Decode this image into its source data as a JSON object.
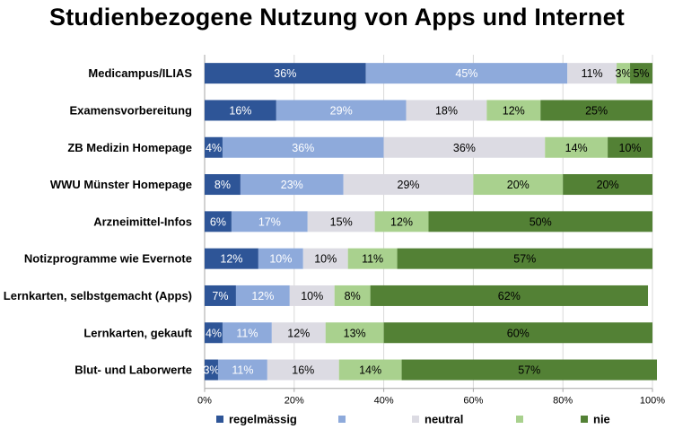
{
  "chart_data": {
    "type": "bar",
    "orientation": "horizontal",
    "stacked": true,
    "title": "Studienbezogene Nutzung von Apps und Internet",
    "xlim": [
      0,
      100
    ],
    "x_ticks": [
      "0%",
      "20%",
      "40%",
      "60%",
      "80%",
      "100%"
    ],
    "grid": true,
    "legend_position": "bottom",
    "categories": [
      "Medicampus/ILIAS",
      "Examensvorbereitung",
      "ZB Medizin Homepage",
      "WWU Münster Homepage",
      "Arzneimittel-Infos",
      "Notizprogramme wie Evernote",
      "Lernkarten, selbstgemacht (Apps)",
      "Lernkarten, gekauft",
      "Blut- und Laborwerte"
    ],
    "series": [
      {
        "name": "regelmässig",
        "color": "#2e5597",
        "label_color": "#ffffff",
        "values": [
          36,
          16,
          4,
          8,
          6,
          12,
          7,
          4,
          3
        ],
        "labels": [
          "36%",
          "16%",
          "4%",
          "8%",
          "6%",
          "12%",
          "7%",
          "4%",
          "3%"
        ]
      },
      {
        "name": "",
        "color": "#8eaadb",
        "label_color": "#ffffff",
        "values": [
          45,
          29,
          36,
          23,
          17,
          10,
          12,
          11,
          11
        ],
        "labels": [
          "45%",
          "29%",
          "36%",
          "23%",
          "17%",
          "10%",
          "12%",
          "11%",
          "11%"
        ]
      },
      {
        "name": "neutral",
        "color": "#dcdbe3",
        "label_color": "#000000",
        "values": [
          11,
          18,
          36,
          29,
          15,
          10,
          10,
          12,
          16
        ],
        "labels": [
          "11%",
          "18%",
          "36%",
          "29%",
          "15%",
          "10%",
          "10%",
          "12%",
          "16%"
        ]
      },
      {
        "name": "",
        "color": "#a9d18e",
        "label_color": "#000000",
        "values": [
          3,
          12,
          14,
          20,
          12,
          11,
          8,
          13,
          14
        ],
        "labels": [
          "3%",
          "12%",
          "14%",
          "20%",
          "12%",
          "11%",
          "8%",
          "13%",
          "14%"
        ]
      },
      {
        "name": "nie",
        "color": "#538135",
        "label_color": "#000000",
        "values": [
          5,
          25,
          10,
          20,
          50,
          57,
          62,
          60,
          57
        ],
        "labels": [
          "5%",
          "25%",
          "10%",
          "20%",
          "50%",
          "57%",
          "62%",
          "60%",
          "57%"
        ]
      }
    ]
  }
}
